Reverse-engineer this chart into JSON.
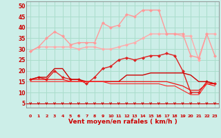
{
  "xlabel": "Vent moyen/en rafales ( km/h )",
  "xlim": [
    -0.5,
    23.5
  ],
  "ylim": [
    3,
    52
  ],
  "yticks": [
    5,
    10,
    15,
    20,
    25,
    30,
    35,
    40,
    45,
    50
  ],
  "xticks": [
    0,
    1,
    2,
    3,
    4,
    5,
    6,
    7,
    8,
    9,
    10,
    11,
    12,
    13,
    14,
    15,
    16,
    17,
    18,
    19,
    20,
    21,
    22,
    23
  ],
  "background_color": "#cceee8",
  "grid_color": "#aaddcc",
  "lines": [
    {
      "x": [
        0,
        1,
        2,
        3,
        4,
        5,
        6,
        7,
        8,
        9,
        10,
        11,
        12,
        13,
        14,
        15,
        16,
        17,
        18,
        19,
        20,
        21,
        22,
        23
      ],
      "y": [
        29,
        31,
        31,
        31,
        31,
        31,
        30,
        31,
        31,
        30,
        30,
        31,
        32,
        33,
        35,
        37,
        37,
        37,
        37,
        36,
        36,
        25,
        37,
        37
      ],
      "color": "#ffaaaa",
      "lw": 1.0,
      "marker": "D",
      "ms": 2.0
    },
    {
      "x": [
        0,
        1,
        2,
        3,
        4,
        5,
        6,
        7,
        8,
        9,
        10,
        11,
        12,
        13,
        14,
        15,
        16,
        17,
        18,
        19,
        20,
        21,
        22,
        23
      ],
      "y": [
        29,
        31,
        35,
        38,
        36,
        32,
        33,
        33,
        33,
        42,
        40,
        41,
        46,
        45,
        48,
        48,
        48,
        37,
        37,
        37,
        27,
        26,
        37,
        27
      ],
      "color": "#ff9999",
      "lw": 1.0,
      "marker": "D",
      "ms": 2.0
    },
    {
      "x": [
        0,
        1,
        2,
        3,
        4,
        5,
        6,
        7,
        8,
        9,
        10,
        11,
        12,
        13,
        14,
        15,
        16,
        17,
        18,
        19,
        20,
        21,
        22,
        23
      ],
      "y": [
        16,
        17,
        16,
        20,
        17,
        16,
        16,
        14,
        17,
        21,
        22,
        25,
        26,
        25,
        26,
        27,
        27,
        28,
        27,
        20,
        10,
        10,
        15,
        14
      ],
      "color": "#dd2222",
      "lw": 1.0,
      "marker": "D",
      "ms": 2.0
    },
    {
      "x": [
        0,
        1,
        2,
        3,
        4,
        5,
        6,
        7,
        8,
        9,
        10,
        11,
        12,
        13,
        14,
        15,
        16,
        17,
        18,
        19,
        20,
        21,
        22,
        23
      ],
      "y": [
        16,
        17,
        17,
        21,
        21,
        16,
        16,
        15,
        15,
        15,
        15,
        15,
        18,
        18,
        18,
        19,
        19,
        19,
        19,
        19,
        18,
        15,
        15,
        14
      ],
      "color": "#cc0000",
      "lw": 1.0,
      "marker": null
    },
    {
      "x": [
        0,
        1,
        2,
        3,
        4,
        5,
        6,
        7,
        8,
        9,
        10,
        11,
        12,
        13,
        14,
        15,
        16,
        17,
        18,
        19,
        20,
        21,
        22,
        23
      ],
      "y": [
        16,
        16,
        16,
        16,
        16,
        15,
        15,
        15,
        15,
        15,
        15,
        15,
        15,
        15,
        15,
        15,
        15,
        15,
        14,
        13,
        11,
        11,
        14,
        14
      ],
      "color": "#ee1111",
      "lw": 0.9,
      "marker": null
    },
    {
      "x": [
        0,
        1,
        2,
        3,
        4,
        5,
        6,
        7,
        8,
        9,
        10,
        11,
        12,
        13,
        14,
        15,
        16,
        17,
        18,
        19,
        20,
        21,
        22,
        23
      ],
      "y": [
        15,
        15,
        15,
        15,
        15,
        15,
        15,
        15,
        15,
        15,
        14,
        14,
        14,
        14,
        14,
        14,
        14,
        13,
        13,
        11,
        9,
        9,
        14,
        13
      ],
      "color": "#ff2222",
      "lw": 0.8,
      "marker": null
    }
  ],
  "tick_color": "#cc0000",
  "label_color": "#cc0000",
  "axis_color": "#888888"
}
